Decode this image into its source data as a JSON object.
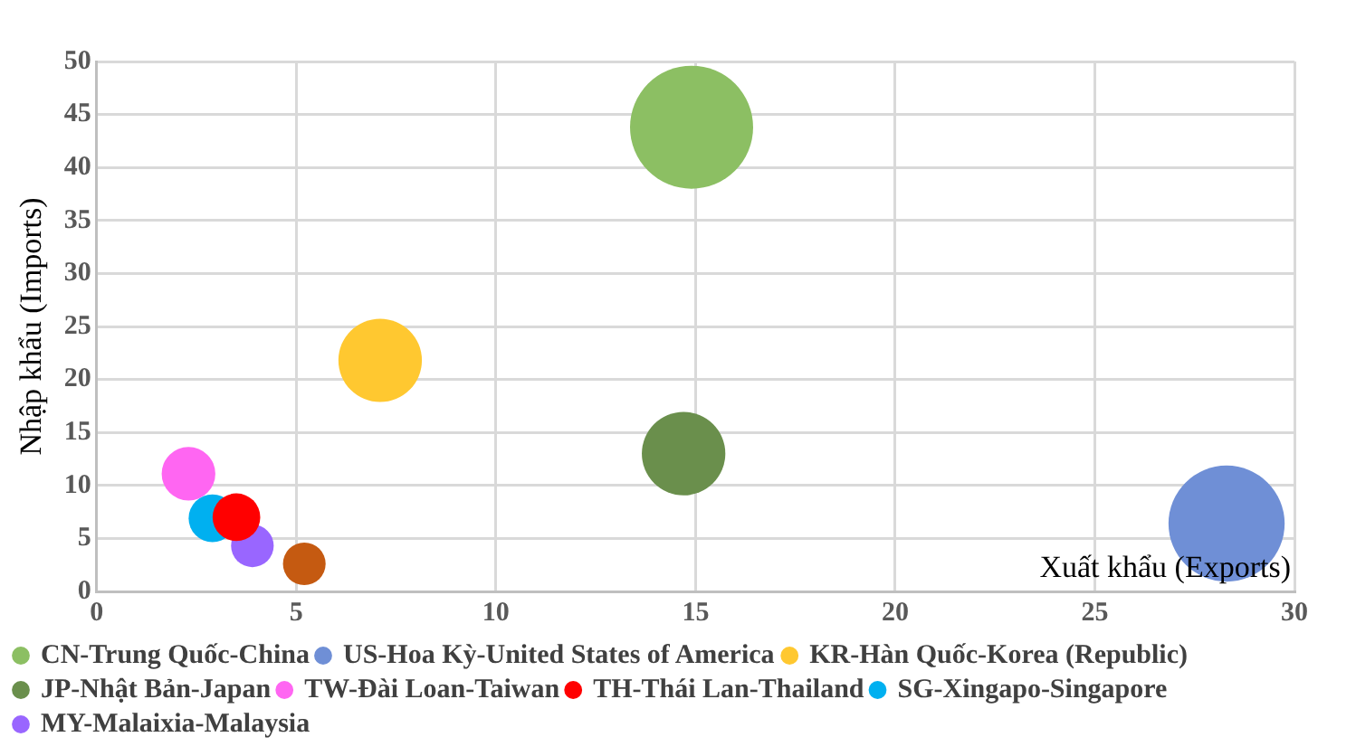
{
  "chart_data": {
    "type": "bubble",
    "xlabel": "Xuất khẩu (Exports)",
    "ylabel": "Nhập khẩu (Imports)",
    "xlim": [
      0,
      30
    ],
    "xticks": [
      0,
      5,
      10,
      15,
      20,
      25,
      30
    ],
    "ylim": [
      0,
      50
    ],
    "yticks": [
      0,
      5,
      10,
      15,
      20,
      25,
      30,
      35,
      40,
      45,
      50
    ],
    "grid": true,
    "legend": "bottom",
    "series": [
      {
        "name": "CN-Trung Quốc-China",
        "color": "#8cbf63",
        "x": [
          14.9
        ],
        "values": [
          43.8
        ],
        "sizes": [
          1
        ]
      },
      {
        "name": "US-Hoa Kỳ-United States of America",
        "color": "#6f8fd6",
        "x": [
          28.3
        ],
        "values": [
          6.4
        ],
        "sizes": [
          0.89
        ]
      },
      {
        "name": "KR-Hàn Quốc-Korea (Republic)",
        "color": "#ffc830",
        "x": [
          7.1
        ],
        "values": [
          21.8
        ],
        "sizes": [
          0.46
        ]
      },
      {
        "name": "JP-Nhật Bản-Japan",
        "color": "#6a8f4c",
        "x": [
          14.7
        ],
        "values": [
          13.0
        ],
        "sizes": [
          0.46
        ]
      },
      {
        "name": "TW-Đài Loan-Taiwan",
        "color": "#ff66f2",
        "x": [
          2.3
        ],
        "values": [
          11.1
        ],
        "sizes": [
          0.19
        ]
      },
      {
        "name": "TH-Thái Lan-Thailand",
        "color": "#ff0000",
        "x": [
          3.5
        ],
        "values": [
          7.0
        ],
        "sizes": [
          0.15
        ]
      },
      {
        "name": "SG-Xingapo-Singapore",
        "color": "#00b0f0",
        "x": [
          2.9
        ],
        "values": [
          6.9
        ],
        "sizes": [
          0.15
        ]
      },
      {
        "name": "MY-Malaixia-Malaysia",
        "color": "#9966ff",
        "x": [
          3.9
        ],
        "values": [
          4.3
        ],
        "sizes": [
          0.12
        ]
      },
      {
        "color": "#c55a11",
        "x": [
          5.2
        ],
        "values": [
          2.6
        ],
        "sizes": [
          0.12
        ]
      }
    ]
  }
}
